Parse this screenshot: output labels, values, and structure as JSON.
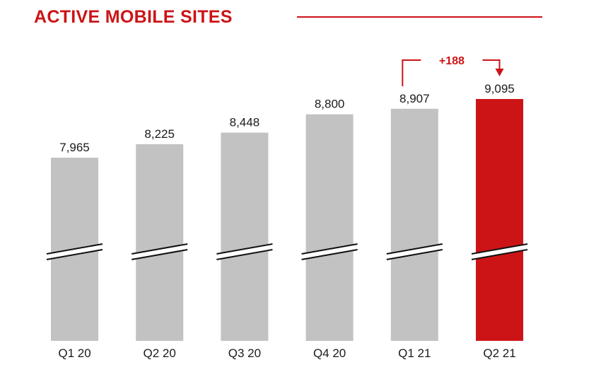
{
  "title": "ACTIVE MOBILE SITES",
  "colors": {
    "accent": "#cc1417",
    "bar": "#c2c2c2",
    "text": "#1a1a1a"
  },
  "chart_data": {
    "type": "bar",
    "title": "ACTIVE MOBILE SITES",
    "categories": [
      "Q1 20",
      "Q2 20",
      "Q3 20",
      "Q4 20",
      "Q1 21",
      "Q2 21"
    ],
    "values": [
      7965,
      8225,
      8448,
      8800,
      8907,
      9095
    ],
    "value_labels": [
      "7,965",
      "8,225",
      "8,448",
      "8,800",
      "8,907",
      "9,095"
    ],
    "highlight_index": 5,
    "axis_break": true,
    "ylim_visible": [
      7000,
      9200
    ],
    "grid": false,
    "annotation": {
      "text": "+188",
      "from_index": 4,
      "to_index": 5
    },
    "xlabel": "",
    "ylabel": ""
  }
}
